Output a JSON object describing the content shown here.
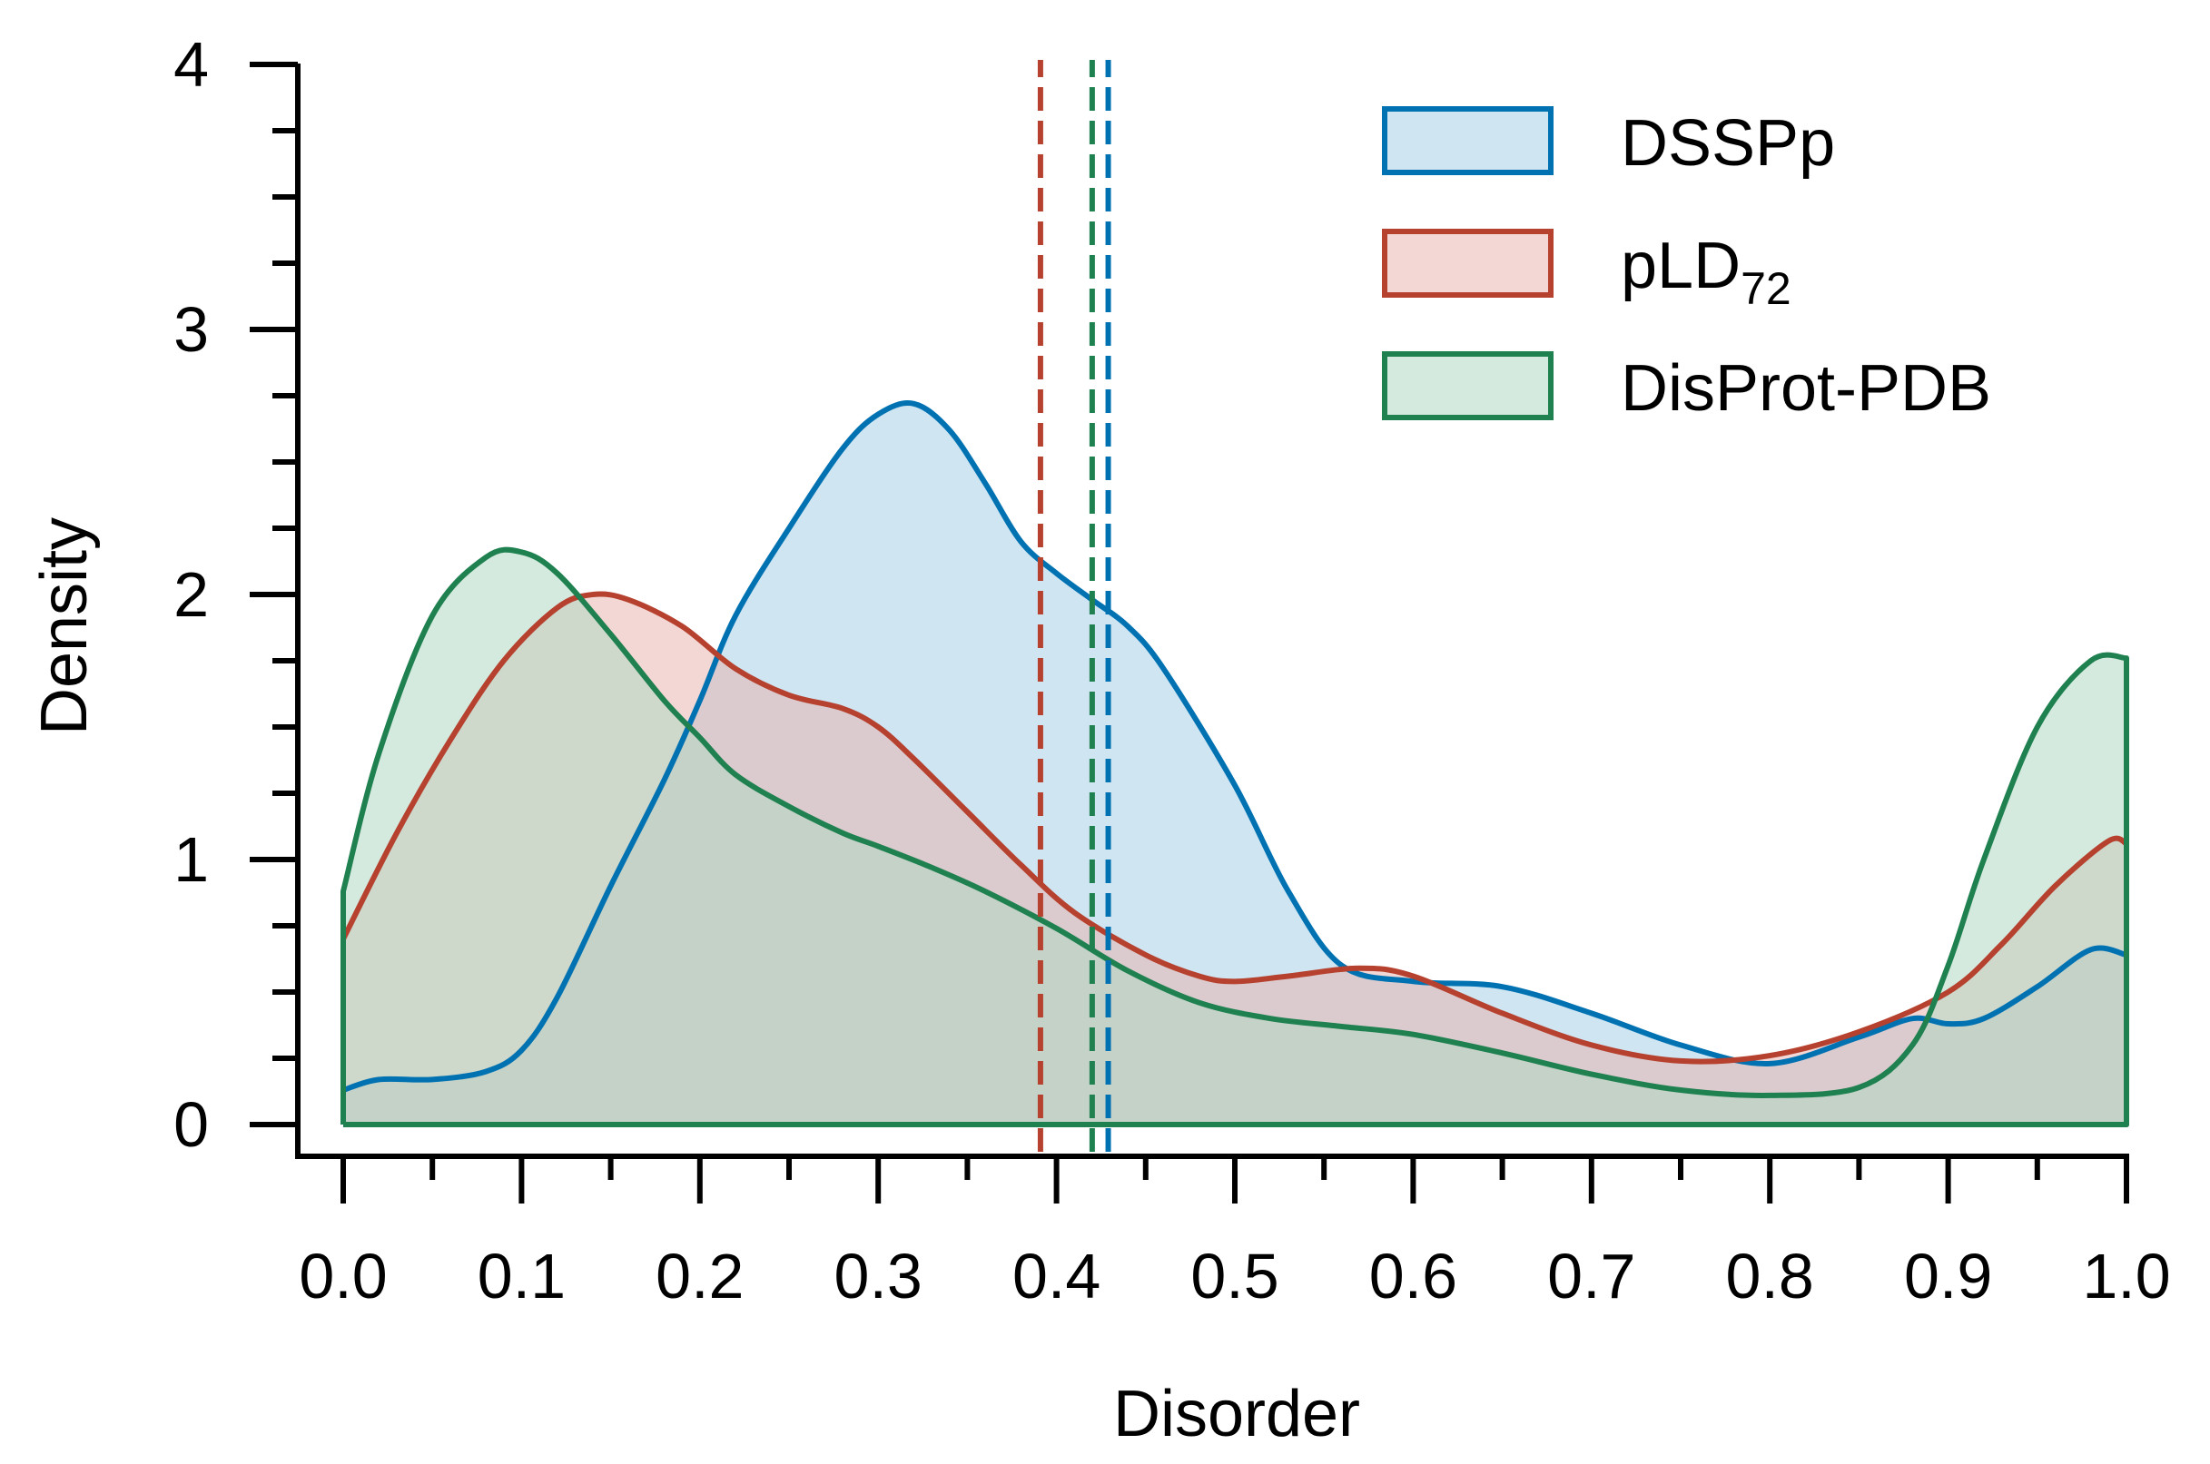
{
  "chart_data": {
    "type": "area",
    "title": "",
    "xlabel": "Disorder",
    "ylabel": "Density",
    "xlim": [
      0.0,
      1.0
    ],
    "ylim": [
      0,
      4
    ],
    "xticks": [
      "0.0",
      "0.1",
      "0.2",
      "0.3",
      "0.4",
      "0.5",
      "0.6",
      "0.7",
      "0.8",
      "0.9",
      "1.0"
    ],
    "yticks": [
      "0",
      "1",
      "2",
      "3",
      "4"
    ],
    "legend_position": "top-right",
    "series": [
      {
        "name": "DSSPp",
        "label": "DSSPp",
        "color": "#0072b2",
        "fill": "#a8cfe8",
        "mean": 0.429,
        "x": [
          0.0,
          0.02,
          0.05,
          0.08,
          0.1,
          0.12,
          0.15,
          0.18,
          0.2,
          0.22,
          0.25,
          0.28,
          0.3,
          0.32,
          0.34,
          0.36,
          0.38,
          0.4,
          0.42,
          0.44,
          0.46,
          0.5,
          0.53,
          0.56,
          0.6,
          0.65,
          0.7,
          0.75,
          0.8,
          0.85,
          0.88,
          0.9,
          0.92,
          0.95,
          0.98,
          1.0
        ],
        "y": [
          0.13,
          0.17,
          0.17,
          0.2,
          0.28,
          0.48,
          0.9,
          1.3,
          1.6,
          1.92,
          2.25,
          2.55,
          2.68,
          2.72,
          2.62,
          2.42,
          2.2,
          2.08,
          1.98,
          1.88,
          1.72,
          1.28,
          0.88,
          0.6,
          0.54,
          0.52,
          0.42,
          0.3,
          0.23,
          0.33,
          0.4,
          0.38,
          0.4,
          0.52,
          0.66,
          0.64
        ]
      },
      {
        "name": "pLD72",
        "label": "pLD",
        "label_sub": "72",
        "color": "#b5412e",
        "fill": "#e8b6b0",
        "mean": 0.391,
        "x": [
          0.0,
          0.03,
          0.06,
          0.09,
          0.12,
          0.14,
          0.16,
          0.19,
          0.22,
          0.25,
          0.28,
          0.3,
          0.32,
          0.35,
          0.38,
          0.41,
          0.45,
          0.48,
          0.5,
          0.53,
          0.57,
          0.6,
          0.65,
          0.7,
          0.75,
          0.8,
          0.85,
          0.9,
          0.93,
          0.96,
          0.99,
          1.0
        ],
        "y": [
          0.7,
          1.1,
          1.45,
          1.75,
          1.95,
          2.0,
          1.98,
          1.88,
          1.72,
          1.62,
          1.57,
          1.5,
          1.38,
          1.18,
          0.98,
          0.8,
          0.64,
          0.56,
          0.54,
          0.56,
          0.59,
          0.56,
          0.42,
          0.3,
          0.24,
          0.26,
          0.35,
          0.5,
          0.68,
          0.9,
          1.07,
          1.06
        ]
      },
      {
        "name": "DisProt-PDB",
        "label": "DisProt-PDB",
        "color": "#1f8050",
        "fill": "#b0d8c2",
        "mean": 0.42,
        "x": [
          0.0,
          0.02,
          0.05,
          0.08,
          0.1,
          0.12,
          0.15,
          0.18,
          0.2,
          0.22,
          0.25,
          0.28,
          0.3,
          0.33,
          0.36,
          0.4,
          0.44,
          0.48,
          0.52,
          0.56,
          0.6,
          0.65,
          0.7,
          0.75,
          0.8,
          0.85,
          0.88,
          0.9,
          0.92,
          0.95,
          0.98,
          1.0
        ],
        "y": [
          0.88,
          1.4,
          1.92,
          2.14,
          2.16,
          2.08,
          1.85,
          1.6,
          1.46,
          1.32,
          1.2,
          1.1,
          1.05,
          0.97,
          0.88,
          0.74,
          0.58,
          0.46,
          0.4,
          0.37,
          0.34,
          0.27,
          0.19,
          0.13,
          0.11,
          0.14,
          0.3,
          0.6,
          1.0,
          1.5,
          1.75,
          1.76
        ]
      }
    ]
  }
}
